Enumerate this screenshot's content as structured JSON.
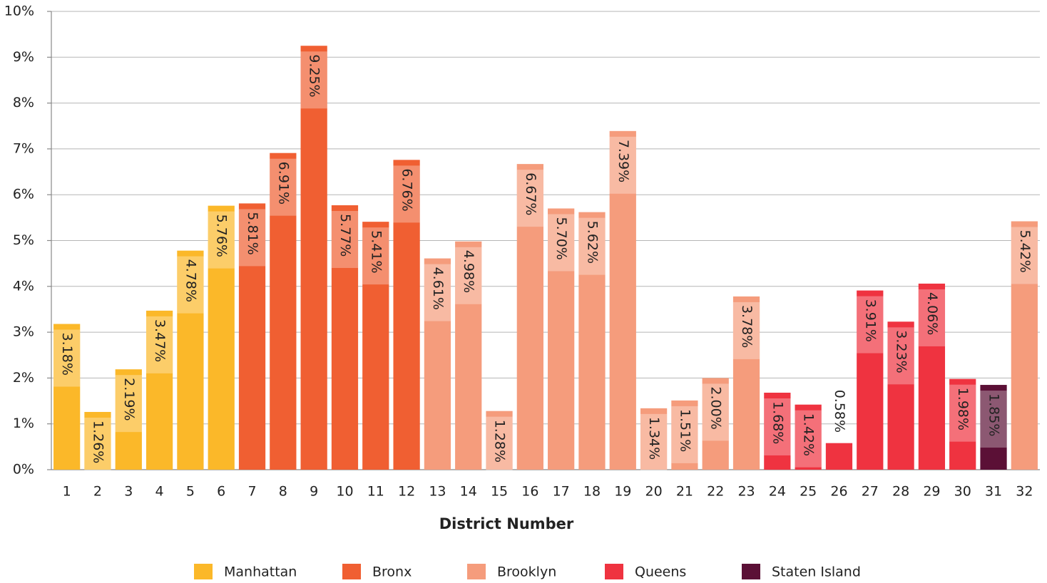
{
  "chart_data": {
    "type": "bar",
    "x_label": "District Number",
    "categories": [
      "1",
      "2",
      "3",
      "4",
      "5",
      "6",
      "7",
      "8",
      "9",
      "10",
      "11",
      "12",
      "13",
      "14",
      "15",
      "16",
      "17",
      "18",
      "19",
      "20",
      "21",
      "22",
      "23",
      "24",
      "25",
      "26",
      "27",
      "28",
      "29",
      "30",
      "31",
      "32"
    ],
    "series": [
      {
        "name": "Manhattan",
        "color": "#fbb829",
        "values": [
          3.18,
          1.26,
          2.19,
          3.47,
          4.78,
          5.76,
          null,
          null,
          null,
          null,
          null,
          null,
          null,
          null,
          null,
          null,
          null,
          null,
          null,
          null,
          null,
          null,
          null,
          null,
          null,
          null,
          null,
          null,
          null,
          null,
          null,
          null
        ],
        "value_labels": [
          "3.18%",
          "1.26%",
          "2.19%",
          "3.47%",
          "4.78%",
          "5.76%",
          null,
          null,
          null,
          null,
          null,
          null,
          null,
          null,
          null,
          null,
          null,
          null,
          null,
          null,
          null,
          null,
          null,
          null,
          null,
          null,
          null,
          null,
          null,
          null,
          null,
          null
        ]
      },
      {
        "name": "Bronx",
        "color": "#f05f32",
        "values": [
          null,
          null,
          null,
          null,
          null,
          null,
          5.81,
          6.91,
          9.25,
          5.77,
          5.41,
          6.76,
          null,
          null,
          null,
          null,
          null,
          null,
          null,
          null,
          null,
          null,
          null,
          null,
          null,
          null,
          null,
          null,
          null,
          null,
          null,
          null
        ],
        "value_labels": [
          null,
          null,
          null,
          null,
          null,
          null,
          "5.81%",
          "6.91%",
          "9.25%",
          "5.77%",
          "5.41%",
          "6.76%",
          null,
          null,
          null,
          null,
          null,
          null,
          null,
          null,
          null,
          null,
          null,
          null,
          null,
          null,
          null,
          null,
          null,
          null,
          null,
          null
        ]
      },
      {
        "name": "Brooklyn",
        "color": "#f59c7c",
        "values": [
          null,
          null,
          null,
          null,
          null,
          null,
          null,
          null,
          null,
          null,
          null,
          null,
          4.61,
          4.98,
          1.28,
          6.67,
          5.7,
          5.62,
          7.39,
          1.34,
          1.51,
          2.0,
          3.78,
          null,
          null,
          null,
          null,
          null,
          null,
          null,
          null,
          5.42
        ],
        "value_labels": [
          null,
          null,
          null,
          null,
          null,
          null,
          null,
          null,
          null,
          null,
          null,
          null,
          "4.61%",
          "4.98%",
          "1.28%",
          "6.67%",
          "5.70%",
          "5.62%",
          "7.39%",
          "1.34%",
          "1.51%",
          "2.00%",
          "3.78%",
          null,
          null,
          null,
          null,
          null,
          null,
          null,
          null,
          "5.42%"
        ]
      },
      {
        "name": "Queens",
        "color": "#ef3340",
        "values": [
          null,
          null,
          null,
          null,
          null,
          null,
          null,
          null,
          null,
          null,
          null,
          null,
          null,
          null,
          null,
          null,
          null,
          null,
          null,
          null,
          null,
          null,
          null,
          1.68,
          1.42,
          0.58,
          3.91,
          3.23,
          4.06,
          1.98,
          null,
          null
        ],
        "value_labels": [
          null,
          null,
          null,
          null,
          null,
          null,
          null,
          null,
          null,
          null,
          null,
          null,
          null,
          null,
          null,
          null,
          null,
          null,
          null,
          null,
          null,
          null,
          null,
          "1.68%",
          "1.42%",
          "0.58%",
          "3.91%",
          "3.23%",
          "4.06%",
          "1.98%",
          null,
          null
        ]
      },
      {
        "name": "Staten Island",
        "color": "#5b1036",
        "values": [
          null,
          null,
          null,
          null,
          null,
          null,
          null,
          null,
          null,
          null,
          null,
          null,
          null,
          null,
          null,
          null,
          null,
          null,
          null,
          null,
          null,
          null,
          null,
          null,
          null,
          null,
          null,
          null,
          null,
          null,
          1.85,
          null
        ],
        "value_labels": [
          null,
          null,
          null,
          null,
          null,
          null,
          null,
          null,
          null,
          null,
          null,
          null,
          null,
          null,
          null,
          null,
          null,
          null,
          null,
          null,
          null,
          null,
          null,
          null,
          null,
          null,
          null,
          null,
          null,
          null,
          "1.85%",
          null
        ]
      }
    ],
    "ylim": [
      0,
      10
    ],
    "yticks": [
      {
        "value": 0,
        "label": "0%"
      },
      {
        "value": 1,
        "label": "1%"
      },
      {
        "value": 2,
        "label": "2%"
      },
      {
        "value": 3,
        "label": "3%"
      },
      {
        "value": 4,
        "label": "4%"
      },
      {
        "value": 5,
        "label": "5%"
      },
      {
        "value": 6,
        "label": "6%"
      },
      {
        "value": 7,
        "label": "7%"
      },
      {
        "value": 8,
        "label": "8%"
      },
      {
        "value": 9,
        "label": "9%"
      },
      {
        "value": 10,
        "label": "10%"
      }
    ],
    "grid": true,
    "legend": "bottom"
  }
}
